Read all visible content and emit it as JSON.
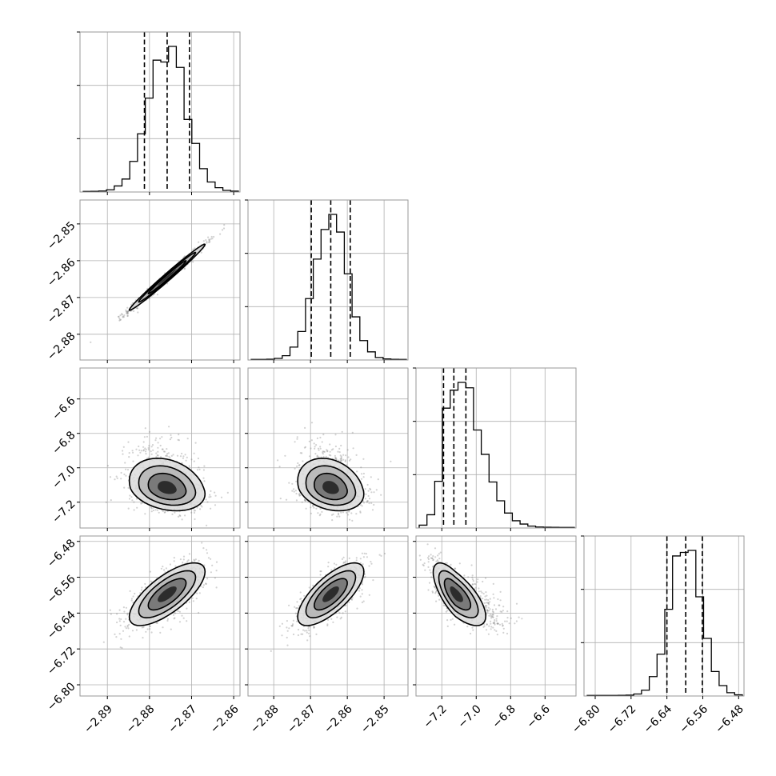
{
  "chart_data": {
    "type": "corner",
    "parameters": 4,
    "grid": true,
    "colors": {
      "line": "#000000",
      "frame": "#999999",
      "grid": "#b0b0b0",
      "points": "#7f7f7f"
    },
    "axes": [
      {
        "range": [
          -2.8965,
          -2.8585
        ],
        "ticks": [
          -2.89,
          -2.88,
          -2.87,
          -2.86
        ],
        "tick_labels": [
          "−2.89",
          "−2.88",
          "−2.87",
          "−2.86"
        ],
        "mean": -2.8758,
        "sd": 0.0045,
        "quantiles": [
          -2.8812,
          -2.8758,
          -2.8705
        ]
      },
      {
        "range": [
          -2.887,
          -2.8435
        ],
        "ticks": [
          -2.88,
          -2.87,
          -2.86,
          -2.85
        ],
        "tick_labels": [
          "−2.88",
          "−2.87",
          "−2.86",
          "−2.85"
        ],
        "mean": -2.8645,
        "sd": 0.0045,
        "quantiles": [
          -2.8698,
          -2.8645,
          -2.8592
        ]
      },
      {
        "range": [
          -7.35,
          -6.42
        ],
        "ticks": [
          -7.2,
          -7.0,
          -6.8,
          -6.6
        ],
        "tick_labels": [
          "−7.2",
          "−7.0",
          "−6.8",
          "−6.6"
        ],
        "mean": -7.12,
        "sd": 0.065,
        "quantiles": [
          -7.19,
          -7.13,
          -7.06
        ]
      },
      {
        "range": [
          -6.825,
          -6.468
        ],
        "ticks": [
          -6.8,
          -6.72,
          -6.64,
          -6.56,
          -6.48
        ],
        "tick_labels": [
          "−6.80",
          "−6.72",
          "−6.64",
          "−6.56",
          "−6.48"
        ],
        "mean": -6.598,
        "sd": 0.035,
        "quantiles": [
          -6.64,
          -6.598,
          -6.561
        ]
      }
    ],
    "correlations": {
      "0-1": 0.99,
      "0-2": -0.25,
      "1-2": -0.25,
      "0-3": 0.72,
      "1-3": 0.72,
      "2-3": -0.7
    },
    "contour_levels_sigma": [
      0.5,
      1.0,
      1.5,
      2.0
    ]
  }
}
